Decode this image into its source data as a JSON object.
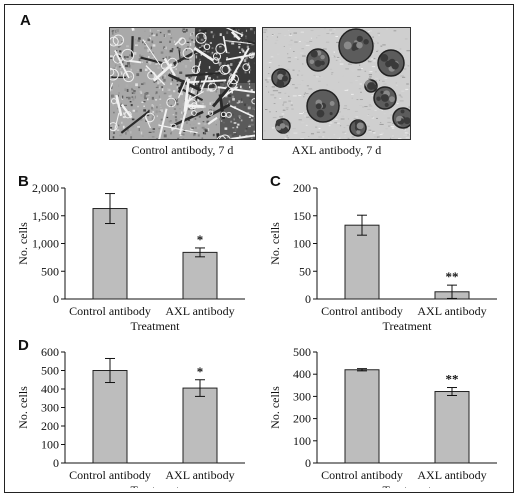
{
  "figure": {
    "panel_a_label": "A",
    "images": [
      {
        "caption": "Control antibody, 7 d",
        "kind": "network"
      },
      {
        "caption": "AXL antibody, 7 d",
        "kind": "spheroids"
      }
    ]
  },
  "colors": {
    "bar_fill": "#bdbdbd",
    "bar_stroke": "#222222",
    "axis": "#111111",
    "image_bg": "#8f8f8f"
  },
  "chart_data": [
    {
      "panel": "B",
      "type": "bar",
      "categories": [
        "Control antibody",
        "AXL antibody"
      ],
      "values": [
        1630,
        840
      ],
      "errors": [
        270,
        80
      ],
      "significance": [
        "",
        "*"
      ],
      "ylabel": "No. cells",
      "xlabel": "Treatment",
      "ylim": [
        0,
        2000
      ],
      "yticks": [
        0,
        500,
        1000,
        1500,
        2000
      ],
      "ytick_labels": [
        "0",
        "500",
        "1,000",
        "1,500",
        "2,000"
      ],
      "grid": false
    },
    {
      "panel": "C",
      "type": "bar",
      "categories": [
        "Control antibody",
        "AXL antibody"
      ],
      "values": [
        133,
        13
      ],
      "errors": [
        18,
        12
      ],
      "significance": [
        "",
        "**"
      ],
      "ylabel": "No. cells",
      "xlabel": "Treatment",
      "ylim": [
        0,
        200
      ],
      "yticks": [
        0,
        50,
        100,
        150,
        200
      ],
      "ytick_labels": [
        "0",
        "50",
        "100",
        "150",
        "200"
      ],
      "grid": false
    },
    {
      "panel": "D",
      "type": "bar",
      "categories": [
        "Control antibody",
        "AXL antibody"
      ],
      "values": [
        500,
        405
      ],
      "errors": [
        65,
        45
      ],
      "significance": [
        "",
        "*"
      ],
      "ylabel": "No. cells",
      "xlabel": "Treatment",
      "ylim": [
        0,
        600
      ],
      "yticks": [
        0,
        100,
        200,
        300,
        400,
        500,
        600
      ],
      "ytick_labels": [
        "0",
        "100",
        "200",
        "300",
        "400",
        "500",
        "600"
      ],
      "grid": false
    },
    {
      "panel": "",
      "type": "bar",
      "categories": [
        "Control antibody",
        "AXL antibody"
      ],
      "values": [
        420,
        322
      ],
      "errors": [
        5,
        18
      ],
      "significance": [
        "",
        "**"
      ],
      "ylabel": "No. cells",
      "xlabel": "Treatment",
      "ylim": [
        0,
        500
      ],
      "yticks": [
        0,
        100,
        200,
        300,
        400,
        500
      ],
      "ytick_labels": [
        "0",
        "100",
        "200",
        "300",
        "400",
        "500"
      ],
      "grid": false
    }
  ]
}
